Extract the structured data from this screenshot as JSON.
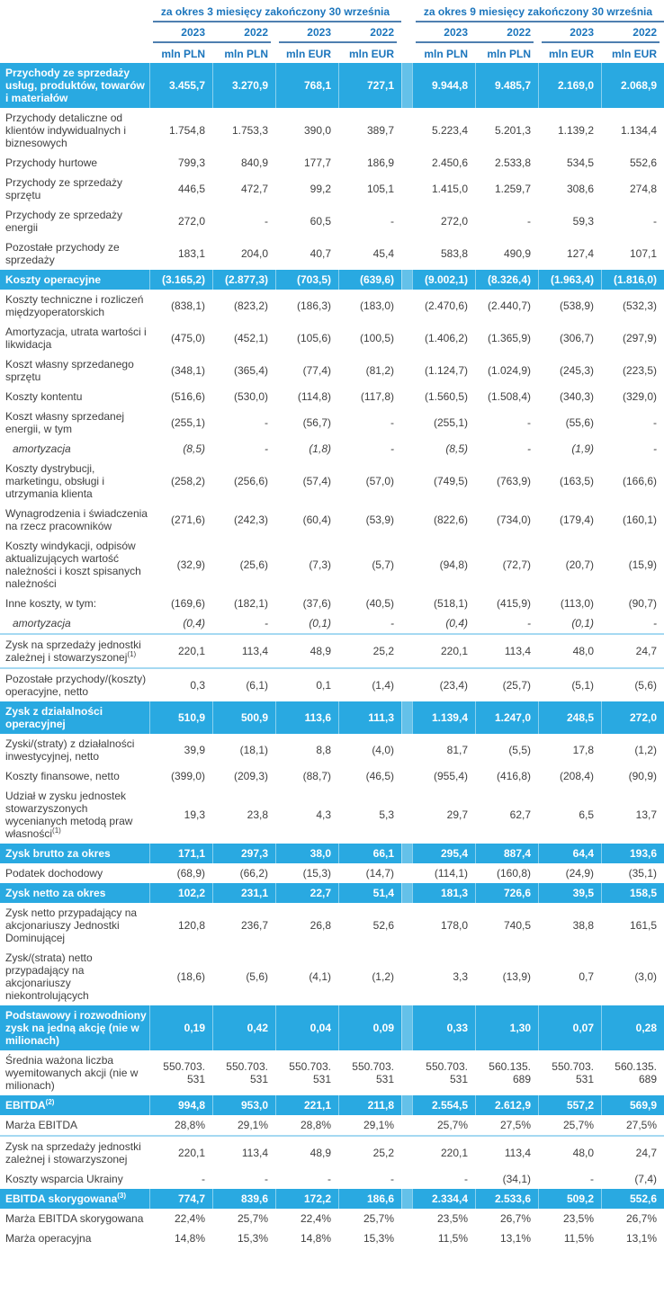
{
  "colors": {
    "band_blue": "#29a9e1",
    "header_blue": "#1b75bc",
    "header_rule_blue": "#4e7fb0",
    "separator_light_blue": "#a5d9f2",
    "body_text": "#3f3f3f"
  },
  "header": {
    "period_groups": [
      {
        "title": "za okres 3 miesięcy zakończony 30 września",
        "years": [
          "2023",
          "2022",
          "2023",
          "2022"
        ],
        "units": [
          "mln PLN",
          "mln PLN",
          "mln EUR",
          "mln EUR"
        ]
      },
      {
        "title": "za okres 9 miesięcy zakończony 30 września",
        "years": [
          "2023",
          "2022",
          "2023",
          "2022"
        ],
        "units": [
          "mln PLN",
          "mln PLN",
          "mln EUR",
          "mln EUR"
        ]
      }
    ]
  },
  "rows": [
    {
      "label": "Przychody ze sprzedaży usług, produktów, towarów i materiałów",
      "emphasis": "highlight",
      "values": [
        "3.455,7",
        "3.270,9",
        "768,1",
        "727,1",
        "9.944,8",
        "9.485,7",
        "2.169,0",
        "2.068,9"
      ]
    },
    {
      "label": "Przychody detaliczne od klientów indywidualnych i biznesowych",
      "emphasis": "normal",
      "values": [
        "1.754,8",
        "1.753,3",
        "390,0",
        "389,7",
        "5.223,4",
        "5.201,3",
        "1.139,2",
        "1.134,4"
      ]
    },
    {
      "label": "Przychody hurtowe",
      "emphasis": "normal",
      "values": [
        "799,3",
        "840,9",
        "177,7",
        "186,9",
        "2.450,6",
        "2.533,8",
        "534,5",
        "552,6"
      ]
    },
    {
      "label": "Przychody ze sprzedaży sprzętu",
      "emphasis": "normal",
      "values": [
        "446,5",
        "472,7",
        "99,2",
        "105,1",
        "1.415,0",
        "1.259,7",
        "308,6",
        "274,8"
      ]
    },
    {
      "label": "Przychody ze sprzedaży energii",
      "emphasis": "normal",
      "values": [
        "272,0",
        "-",
        "60,5",
        "-",
        "272,0",
        "-",
        "59,3",
        "-"
      ]
    },
    {
      "label": "Pozostałe przychody ze sprzedaży",
      "emphasis": "normal",
      "values": [
        "183,1",
        "204,0",
        "40,7",
        "45,4",
        "583,8",
        "490,9",
        "127,4",
        "107,1"
      ]
    },
    {
      "label": "Koszty operacyjne",
      "emphasis": "highlight",
      "values": [
        "(3.165,2)",
        "(2.877,3)",
        "(703,5)",
        "(639,6)",
        "(9.002,1)",
        "(8.326,4)",
        "(1.963,4)",
        "(1.816,0)"
      ]
    },
    {
      "label": "Koszty techniczne i rozliczeń międzyoperatorskich",
      "emphasis": "normal",
      "values": [
        "(838,1)",
        "(823,2)",
        "(186,3)",
        "(183,0)",
        "(2.470,6)",
        "(2.440,7)",
        "(538,9)",
        "(532,3)"
      ]
    },
    {
      "label": "Amortyzacja, utrata wartości i likwidacja",
      "emphasis": "normal",
      "values": [
        "(475,0)",
        "(452,1)",
        "(105,6)",
        "(100,5)",
        "(1.406,2)",
        "(1.365,9)",
        "(306,7)",
        "(297,9)"
      ]
    },
    {
      "label": "Koszt własny sprzedanego sprzętu",
      "emphasis": "normal",
      "values": [
        "(348,1)",
        "(365,4)",
        "(77,4)",
        "(81,2)",
        "(1.124,7)",
        "(1.024,9)",
        "(245,3)",
        "(223,5)"
      ]
    },
    {
      "label": "Koszty kontentu",
      "emphasis": "normal",
      "values": [
        "(516,6)",
        "(530,0)",
        "(114,8)",
        "(117,8)",
        "(1.560,5)",
        "(1.508,4)",
        "(340,3)",
        "(329,0)"
      ]
    },
    {
      "label": "Koszt własny sprzedanej energii, w tym",
      "emphasis": "normal",
      "values": [
        "(255,1)",
        "-",
        "(56,7)",
        "-",
        "(255,1)",
        "-",
        "(55,6)",
        "-"
      ]
    },
    {
      "label": "amortyzacja",
      "emphasis": "sub-italic",
      "values": [
        "(8,5)",
        "-",
        "(1,8)",
        "-",
        "(8,5)",
        "-",
        "(1,9)",
        "-"
      ]
    },
    {
      "label": "Koszty dystrybucji, marketingu, obsługi i utrzymania klienta",
      "emphasis": "normal",
      "values": [
        "(258,2)",
        "(256,6)",
        "(57,4)",
        "(57,0)",
        "(749,5)",
        "(763,9)",
        "(163,5)",
        "(166,6)"
      ]
    },
    {
      "label": "Wynagrodzenia i świadczenia na rzecz pracowników",
      "emphasis": "normal",
      "values": [
        "(271,6)",
        "(242,3)",
        "(60,4)",
        "(53,9)",
        "(822,6)",
        "(734,0)",
        "(179,4)",
        "(160,1)"
      ]
    },
    {
      "label": "Koszty windykacji, odpisów aktualizujących wartość należności i koszt spisanych należności",
      "emphasis": "normal",
      "values": [
        "(32,9)",
        "(25,6)",
        "(7,3)",
        "(5,7)",
        "(94,8)",
        "(72,7)",
        "(20,7)",
        "(15,9)"
      ]
    },
    {
      "label": "Inne koszty, w tym:",
      "emphasis": "normal",
      "values": [
        "(169,6)",
        "(182,1)",
        "(37,6)",
        "(40,5)",
        "(518,1)",
        "(415,9)",
        "(113,0)",
        "(90,7)"
      ]
    },
    {
      "label": "amortyzacja",
      "emphasis": "sub-italic",
      "values": [
        "(0,4)",
        "-",
        "(0,1)",
        "-",
        "(0,4)",
        "-",
        "(0,1)",
        "-"
      ]
    },
    {
      "label": "Zysk na sprzedaży jednostki zależnej i stowarzyszonej",
      "sup": "(1)",
      "emphasis": "normal",
      "sep_top": true,
      "sep_bottom": true,
      "values": [
        "220,1",
        "113,4",
        "48,9",
        "25,2",
        "220,1",
        "113,4",
        "48,0",
        "24,7"
      ]
    },
    {
      "label": "Pozostałe przychody/(koszty) operacyjne, netto",
      "emphasis": "normal",
      "values": [
        "0,3",
        "(6,1)",
        "0,1",
        "(1,4)",
        "(23,4)",
        "(25,7)",
        "(5,1)",
        "(5,6)"
      ]
    },
    {
      "label": "Zysk z działalności operacyjnej",
      "emphasis": "highlight",
      "values": [
        "510,9",
        "500,9",
        "113,6",
        "111,3",
        "1.139,4",
        "1.247,0",
        "248,5",
        "272,0"
      ]
    },
    {
      "label": "Zyski/(straty) z działalności inwestycyjnej, netto",
      "emphasis": "normal",
      "values": [
        "39,9",
        "(18,1)",
        "8,8",
        "(4,0)",
        "81,7",
        "(5,5)",
        "17,8",
        "(1,2)"
      ]
    },
    {
      "label": "Koszty finansowe, netto",
      "emphasis": "normal",
      "values": [
        "(399,0)",
        "(209,3)",
        "(88,7)",
        "(46,5)",
        "(955,4)",
        "(416,8)",
        "(208,4)",
        "(90,9)"
      ]
    },
    {
      "label": "Udział w zysku jednostek stowarzyszonych wycenianych metodą praw własności",
      "sup": "(1)",
      "emphasis": "normal",
      "values": [
        "19,3",
        "23,8",
        "4,3",
        "5,3",
        "29,7",
        "62,7",
        "6,5",
        "13,7"
      ]
    },
    {
      "label": "Zysk brutto za okres",
      "emphasis": "highlight",
      "values": [
        "171,1",
        "297,3",
        "38,0",
        "66,1",
        "295,4",
        "887,4",
        "64,4",
        "193,6"
      ]
    },
    {
      "label": "Podatek dochodowy",
      "emphasis": "normal",
      "values": [
        "(68,9)",
        "(66,2)",
        "(15,3)",
        "(14,7)",
        "(114,1)",
        "(160,8)",
        "(24,9)",
        "(35,1)"
      ]
    },
    {
      "label": "Zysk netto za okres",
      "emphasis": "highlight",
      "values": [
        "102,2",
        "231,1",
        "22,7",
        "51,4",
        "181,3",
        "726,6",
        "39,5",
        "158,5"
      ]
    },
    {
      "label": "Zysk netto przypadający na akcjonariuszy Jednostki Dominującej",
      "emphasis": "normal",
      "values": [
        "120,8",
        "236,7",
        "26,8",
        "52,6",
        "178,0",
        "740,5",
        "38,8",
        "161,5"
      ]
    },
    {
      "label": "Zysk/(strata) netto przypadający na akcjonariuszy niekontrolujących",
      "emphasis": "normal",
      "values": [
        "(18,6)",
        "(5,6)",
        "(4,1)",
        "(1,2)",
        "3,3",
        "(13,9)",
        "0,7",
        "(3,0)"
      ]
    },
    {
      "label": "Podstawowy i rozwodniony zysk na jedną akcję (nie w milionach)",
      "emphasis": "highlight",
      "values": [
        "0,19",
        "0,42",
        "0,04",
        "0,09",
        "0,33",
        "1,30",
        "0,07",
        "0,28"
      ]
    },
    {
      "label": "Średnia ważona liczba wyemitowanych akcji (nie w milionach)",
      "emphasis": "normal",
      "values": [
        "550.703.\n531",
        "550.703.\n531",
        "550.703.\n531",
        "550.703.\n531",
        "550.703.\n531",
        "560.135.\n689",
        "550.703.\n531",
        "560.135.\n689"
      ]
    },
    {
      "label": "EBITDA",
      "sup": "(2)",
      "emphasis": "highlight",
      "values": [
        "994,8",
        "953,0",
        "221,1",
        "211,8",
        "2.554,5",
        "2.612,9",
        "557,2",
        "569,9"
      ]
    },
    {
      "label": "Marża EBITDA",
      "emphasis": "normal",
      "values": [
        "28,8%",
        "29,1%",
        "28,8%",
        "29,1%",
        "25,7%",
        "27,5%",
        "25,7%",
        "27,5%"
      ]
    },
    {
      "label": "Zysk na sprzedaży jednostki zależnej i stowarzyszonej",
      "emphasis": "normal",
      "sep_top": true,
      "values": [
        "220,1",
        "113,4",
        "48,9",
        "25,2",
        "220,1",
        "113,4",
        "48,0",
        "24,7"
      ]
    },
    {
      "label": "Koszty wsparcia Ukrainy",
      "emphasis": "normal",
      "values": [
        "-",
        "-",
        "-",
        "-",
        "-",
        "(34,1)",
        "-",
        "(7,4)"
      ]
    },
    {
      "label": "EBITDA skorygowana",
      "sup": "(3)",
      "emphasis": "highlight",
      "values": [
        "774,7",
        "839,6",
        "172,2",
        "186,6",
        "2.334,4",
        "2.533,6",
        "509,2",
        "552,6"
      ]
    },
    {
      "label": "Marża EBITDA skorygowana",
      "emphasis": "normal",
      "values": [
        "22,4%",
        "25,7%",
        "22,4%",
        "25,7%",
        "23,5%",
        "26,7%",
        "23,5%",
        "26,7%"
      ]
    },
    {
      "label": "Marża operacyjna",
      "emphasis": "normal",
      "values": [
        "14,8%",
        "15,3%",
        "14,8%",
        "15,3%",
        "11,5%",
        "13,1%",
        "11,5%",
        "13,1%"
      ]
    }
  ]
}
